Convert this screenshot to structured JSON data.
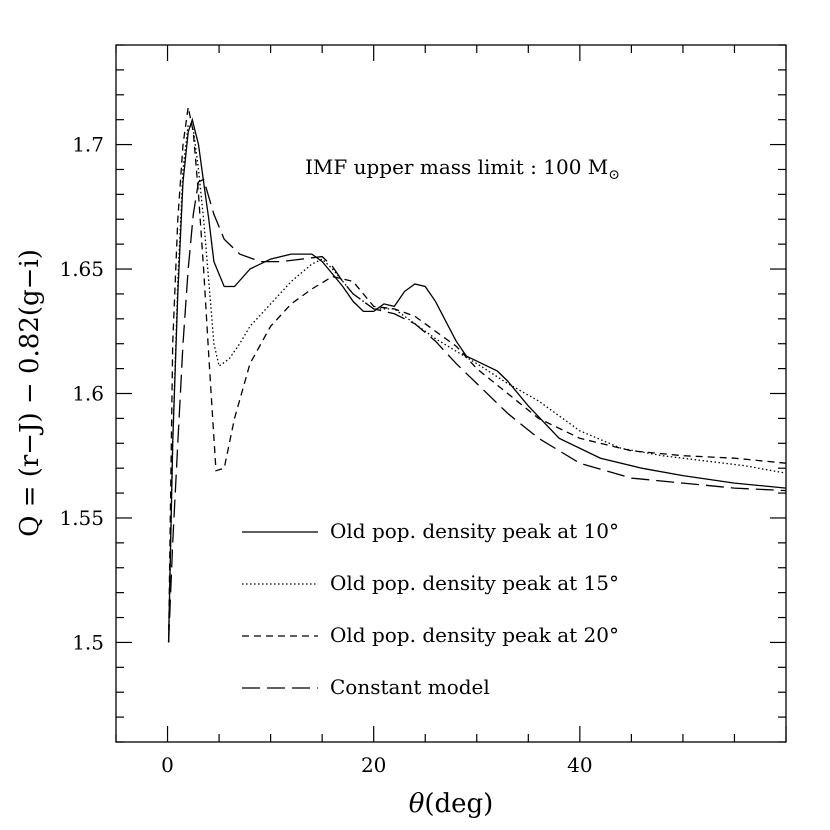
{
  "chart_data": {
    "type": "line",
    "title": "",
    "xlabel_symbol": "θ",
    "xlabel_unit": "(deg)",
    "xlabel": "θ(deg)",
    "ylabel": "Q = (r−J) − 0.82(g−i)",
    "xlim": [
      -5,
      60
    ],
    "ylim": [
      1.46,
      1.74
    ],
    "x_ticks": [
      0,
      20,
      40
    ],
    "x_tick_labels": [
      "0",
      "20",
      "40"
    ],
    "y_ticks": [
      1.5,
      1.55,
      1.6,
      1.65,
      1.7
    ],
    "y_tick_labels": [
      "1.5",
      "1.55",
      "1.6",
      "1.65",
      "1.7"
    ],
    "annotation_prefix": "IMF upper mass limit : 100 M",
    "annotation_symbol": "⊙",
    "annotation": "IMF upper mass limit : 100 M⊙",
    "legend_position": "lower-center",
    "series": [
      {
        "name": "Old pop. density peak at 10°",
        "style": "solid",
        "x": [
          0.1,
          0.5,
          1.0,
          1.5,
          2.0,
          2.4,
          3.0,
          3.5,
          4.0,
          4.5,
          5.5,
          6.5,
          8,
          10,
          12,
          14,
          15,
          16,
          17,
          18,
          19,
          20,
          21,
          22,
          23,
          24,
          25,
          26,
          27,
          28,
          29,
          30,
          31,
          32,
          33,
          35,
          38,
          42,
          46,
          50,
          55,
          60
        ],
        "y": [
          1.5,
          1.58,
          1.64,
          1.685,
          1.705,
          1.71,
          1.7,
          1.685,
          1.67,
          1.653,
          1.643,
          1.643,
          1.65,
          1.654,
          1.656,
          1.656,
          1.653,
          1.648,
          1.643,
          1.637,
          1.633,
          1.633,
          1.636,
          1.635,
          1.641,
          1.644,
          1.643,
          1.637,
          1.629,
          1.621,
          1.615,
          1.613,
          1.611,
          1.609,
          1.605,
          1.595,
          1.582,
          1.574,
          1.57,
          1.567,
          1.564,
          1.562
        ]
      },
      {
        "name": "Old pop. density peak at 15°",
        "style": "dotted",
        "x": [
          0.1,
          0.5,
          1.0,
          1.5,
          2.0,
          2.5,
          3.0,
          3.5,
          4.0,
          4.5,
          5.0,
          6,
          7,
          8,
          10,
          12,
          14,
          15,
          16,
          18,
          20,
          22,
          24,
          26,
          28,
          30,
          33,
          36,
          40,
          44,
          48,
          52,
          56,
          60
        ],
        "y": [
          1.5,
          1.58,
          1.645,
          1.69,
          1.708,
          1.706,
          1.69,
          1.67,
          1.645,
          1.62,
          1.611,
          1.614,
          1.62,
          1.627,
          1.636,
          1.645,
          1.652,
          1.654,
          1.65,
          1.64,
          1.634,
          1.634,
          1.628,
          1.622,
          1.617,
          1.612,
          1.604,
          1.597,
          1.585,
          1.578,
          1.575,
          1.573,
          1.571,
          1.568
        ]
      },
      {
        "name": "Old pop. density peak at 20°",
        "style": "dashed",
        "x": [
          0.1,
          0.5,
          1.0,
          1.5,
          2.0,
          2.5,
          3.0,
          3.5,
          4.0,
          4.3,
          4.7,
          5.5,
          6.5,
          8,
          10,
          12,
          14,
          16,
          18,
          20,
          22,
          24,
          26,
          28,
          30,
          33,
          36,
          40,
          45,
          50,
          55,
          60
        ],
        "y": [
          1.5,
          1.62,
          1.67,
          1.7,
          1.715,
          1.705,
          1.68,
          1.65,
          1.615,
          1.595,
          1.569,
          1.57,
          1.59,
          1.612,
          1.627,
          1.636,
          1.642,
          1.647,
          1.645,
          1.635,
          1.634,
          1.631,
          1.625,
          1.619,
          1.61,
          1.6,
          1.59,
          1.582,
          1.577,
          1.575,
          1.574,
          1.572
        ]
      },
      {
        "name": "Constant model",
        "style": "longdash",
        "x": [
          0.1,
          0.5,
          1.0,
          1.5,
          2.0,
          2.5,
          3.0,
          3.5,
          4.5,
          5.5,
          7,
          9,
          11,
          13,
          15,
          16,
          17,
          18,
          20,
          22,
          24,
          26,
          28,
          30,
          33,
          36,
          40,
          45,
          50,
          55,
          60
        ],
        "y": [
          1.5,
          1.54,
          1.58,
          1.62,
          1.65,
          1.672,
          1.685,
          1.686,
          1.672,
          1.662,
          1.656,
          1.653,
          1.653,
          1.654,
          1.655,
          1.651,
          1.645,
          1.64,
          1.634,
          1.632,
          1.628,
          1.621,
          1.612,
          1.604,
          1.592,
          1.582,
          1.572,
          1.566,
          1.564,
          1.562,
          1.561
        ]
      }
    ]
  }
}
